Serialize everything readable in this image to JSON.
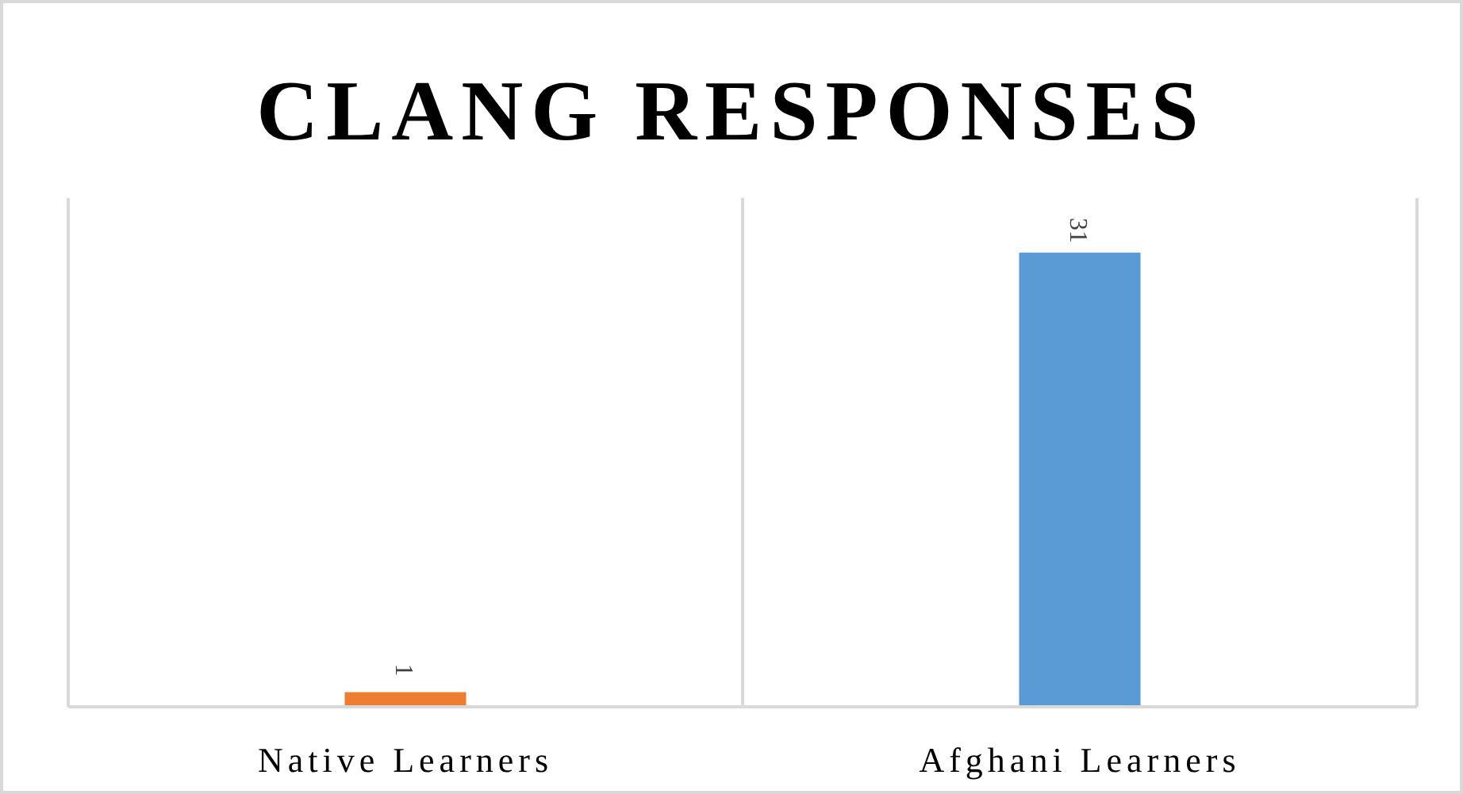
{
  "chart_data": {
    "type": "bar",
    "title": "CLANG RESPONSES",
    "categories": [
      "Native Learners",
      "Afghani Learners"
    ],
    "values": [
      1,
      31
    ],
    "colors": [
      "#ed7d31",
      "#5b9bd5"
    ],
    "data_labels": true,
    "grid": "x"
  }
}
